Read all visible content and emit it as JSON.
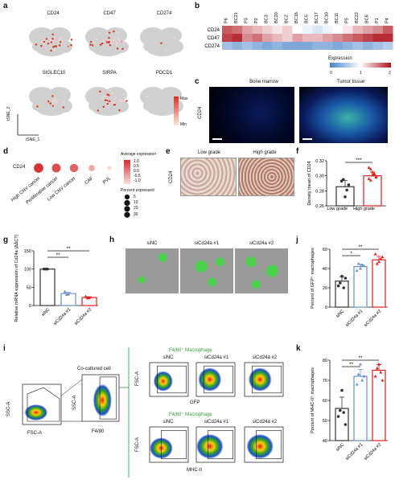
{
  "panel_letters": [
    "a",
    "b",
    "c",
    "d",
    "e",
    "f",
    "g",
    "h",
    "i",
    "j",
    "k"
  ],
  "panel_a": {
    "plots": [
      "CD24",
      "CD47",
      "CD274",
      "SIGLEC10",
      "SIRPA",
      "PDCD1"
    ],
    "legend_max": "Max",
    "legend_min": "Min",
    "axis_x": "tSNE_1",
    "axis_y": "tSNE_2",
    "colors": {
      "high": "#d7301f",
      "low": "#f4d6cc",
      "base": "#d0d0d0"
    }
  },
  "panel_b": {
    "columns": [
      "P6",
      "BC21",
      "P3",
      "P2",
      "BC3",
      "BC20",
      "BC2",
      "BC16",
      "BC5",
      "BC17",
      "BC10",
      "BC11",
      "P5",
      "BC22",
      "BC6",
      "P1",
      "P4"
    ],
    "rows": [
      "CD24",
      "CD47",
      "CD274"
    ],
    "legend_title": "Expression",
    "legend_ticks": [
      "0",
      "1",
      "2"
    ],
    "values": [
      [
        1.7,
        1.6,
        1.4,
        1.3,
        1.2,
        1.1,
        1.2,
        1.0,
        0.9,
        0.8,
        0.9,
        1.0,
        1.1,
        1.3,
        1.4,
        1.5,
        1.7
      ],
      [
        1.8,
        1.9,
        1.5,
        1.6,
        1.4,
        1.3,
        1.2,
        1.4,
        1.3,
        1.3,
        1.4,
        1.5,
        1.6,
        1.7,
        1.8,
        1.9,
        1.9
      ],
      [
        0.5,
        0.4,
        0.5,
        0.4,
        0.3,
        0.4,
        0.3,
        0.3,
        0.3,
        0.4,
        0.4,
        0.3,
        0.4,
        0.5,
        0.4,
        0.5,
        0.6
      ]
    ]
  },
  "panel_c": {
    "titles": [
      "Bone marrow",
      "Tumor tissue"
    ],
    "ylabel": "CD24"
  },
  "panel_d": {
    "row_label": "CD24",
    "categories": [
      "High CNV cancer",
      "Proliferative cancer",
      "Low CNV cancer",
      "CAF",
      "PVL"
    ],
    "avg_expression": [
      0.9,
      0.6,
      0.4,
      -0.4,
      -0.9
    ],
    "percent_expressed": [
      30,
      25,
      22,
      10,
      3
    ],
    "legend_avg_title": "Average expression",
    "legend_avg_ticks": [
      "1.0",
      "0.5",
      "0.0",
      "-0.5",
      "-1.0"
    ],
    "legend_pct_title": "Percent expressed",
    "legend_pct_values": [
      "5",
      "10",
      "20",
      "30"
    ]
  },
  "panel_e": {
    "titles": [
      "Low grade",
      "High grade"
    ],
    "ylabel": "CD24"
  },
  "chart_data": [
    {
      "id": "f",
      "type": "bar",
      "categories": [
        "Low grade",
        "High grade"
      ],
      "values": [
        0.2855,
        0.3
      ],
      "points": [
        [
          0.293,
          0.295,
          0.272,
          0.281,
          0.288
        ],
        [
          0.311,
          0.309,
          0.305,
          0.302,
          0.298,
          0.296,
          0.294,
          0.301,
          0.303,
          0.299
        ]
      ],
      "ylabel": "Density mean of CD24",
      "yticks": [
        "0.26",
        "0.28",
        "0.30",
        "0.32"
      ],
      "ylim": [
        0.26,
        0.32
      ],
      "significance": "***",
      "colors": [
        "#333333",
        "#e41a1c"
      ]
    },
    {
      "id": "g",
      "type": "bar",
      "categories": [
        "siNC",
        "siCd24a #1",
        "siCd24a #2"
      ],
      "values": [
        100,
        33,
        22
      ],
      "points": [
        [
          100,
          100,
          100
        ],
        [
          38,
          30,
          31
        ],
        [
          25,
          20,
          21
        ]
      ],
      "ylabel": "Relative mRNA expression of Cd24a (ΔΔCT)",
      "yticks": [
        "0",
        "50",
        "100",
        "150"
      ],
      "ylim": [
        0,
        150
      ],
      "significance": [
        "**",
        "**"
      ],
      "colors": [
        "#333333",
        "#6a8fc7",
        "#e41a1c"
      ]
    },
    {
      "id": "j",
      "type": "bar",
      "categories": [
        "siNC",
        "siCd24a #1",
        "siCd24a #2"
      ],
      "values": [
        27,
        42,
        49
      ],
      "points": [
        [
          22,
          25,
          32,
          20,
          30
        ],
        [
          38,
          45,
          40,
          44,
          43
        ],
        [
          55,
          45,
          47,
          50,
          52
        ]
      ],
      "ylabel": "Percent of GFP⁺ macrophages",
      "yticks": [
        "0",
        "20",
        "40",
        "60"
      ],
      "ylim": [
        0,
        60
      ],
      "significance": [
        "*",
        "**"
      ],
      "colors": [
        "#333333",
        "#6a8fc7",
        "#e41a1c"
      ]
    },
    {
      "id": "k",
      "type": "bar",
      "categories": [
        "siNC",
        "siCd24a #1",
        "siCd24a #2"
      ],
      "values": [
        56,
        72,
        75
      ],
      "points": [
        [
          52,
          55,
          65,
          54,
          48
        ],
        [
          68,
          73,
          78,
          70,
          72
        ],
        [
          72,
          76,
          78,
          74,
          70
        ]
      ],
      "ylabel": "Percent of MHC-II⁺ macrophages",
      "yticks": [
        "40",
        "50",
        "60",
        "70",
        "80"
      ],
      "ylim": [
        40,
        80
      ],
      "significance": [
        "**",
        "**"
      ],
      "colors": [
        "#333333",
        "#6a8fc7",
        "#e41a1c"
      ]
    }
  ],
  "panel_h": {
    "titles": [
      "siNC",
      "siCd24a #1",
      "siCd24a #2"
    ]
  },
  "panel_i": {
    "gate1_xlabel": "FSC-A",
    "gate1_ylabel": "SSC-A",
    "gate2_title": "Co-cultured cell",
    "gate2_xlabel": "F4/80",
    "gate2_ylabel": "SSC-A",
    "group_title": "F4/80⁺ Macrophage",
    "row1_titles": [
      "siNC",
      "siCd24a #1",
      "siCd24a #2"
    ],
    "row1_xlabel": "GFP",
    "row1_ylabel": "FSC-A",
    "row2_titles": [
      "siNC",
      "siCd24a #1",
      "siCd24a #2"
    ],
    "row2_xlabel": "MHC-II",
    "row2_ylabel": "FSC-A"
  }
}
